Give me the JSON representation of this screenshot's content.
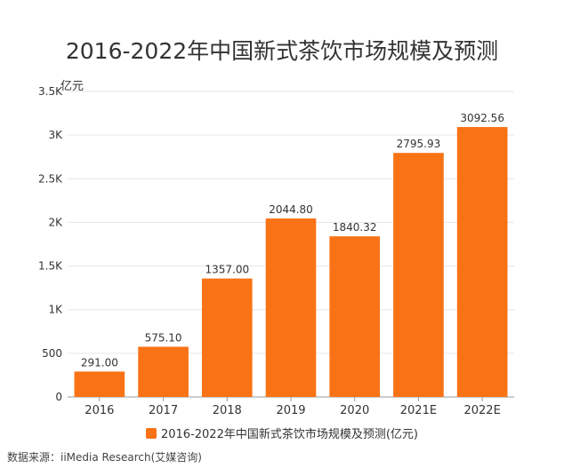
{
  "chart_data": {
    "type": "bar",
    "title": "2016-2022年中国新式茶饮市场规模及预测",
    "ylabel": "亿元",
    "categories": [
      "2016",
      "2017",
      "2018",
      "2019",
      "2020",
      "2021E",
      "2022E"
    ],
    "series": [
      {
        "name": "2016-2022年中国新式茶饮市场规模及预测(亿元)",
        "values": [
          291.0,
          575.1,
          1357.0,
          2044.8,
          1840.32,
          2795.93,
          3092.56
        ],
        "labels": [
          "291.00",
          "575.10",
          "1357.00",
          "2044.80",
          "1840.32",
          "2795.93",
          "3092.56"
        ],
        "color": "#f97316"
      }
    ],
    "ylim": [
      0,
      3500
    ],
    "yticks": [
      0,
      500,
      1000,
      1500,
      2000,
      2500,
      3000,
      3500
    ],
    "ytick_labels": [
      "0",
      "500",
      "1K",
      "1.5K",
      "2K",
      "2.5K",
      "3K",
      "3.5K"
    ],
    "grid": true,
    "legend_position": "bottom"
  },
  "source": "数据来源：iiMedia Research(艾媒咨询)"
}
